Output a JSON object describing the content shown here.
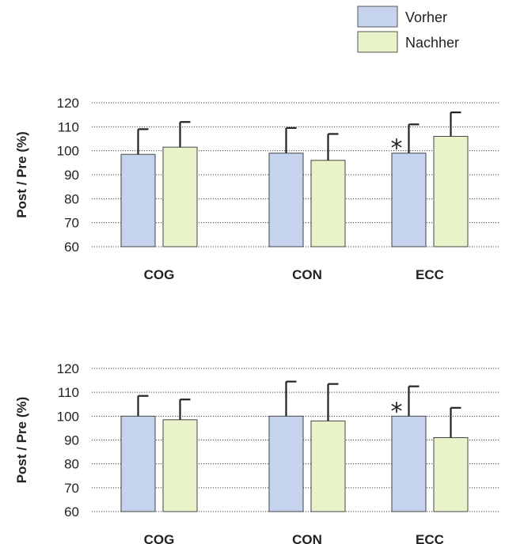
{
  "legend": [
    {
      "label": "Vorher",
      "color": "#c5d3ee"
    },
    {
      "label": "Nachher",
      "color": "#e9f3c9"
    }
  ],
  "chart_data": [
    {
      "type": "bar",
      "ylabel": "Post / Pre (%)",
      "ylim": [
        60,
        120
      ],
      "yticks": [
        "120",
        "110",
        "100",
        "90",
        "80",
        "70",
        "60"
      ],
      "categories": [
        "COG",
        "CON",
        "ECC"
      ],
      "series": [
        {
          "name": "Vorher",
          "values": [
            98.5,
            99,
            99
          ],
          "errors": [
            10.5,
            10.5,
            12
          ]
        },
        {
          "name": "Nachher",
          "values": [
            101.5,
            96,
            106
          ],
          "errors": [
            10.5,
            11,
            10
          ]
        }
      ],
      "annotations": [
        {
          "category": "ECC",
          "text": "*"
        }
      ],
      "grid": true
    },
    {
      "type": "bar",
      "ylabel": "Post / Pre (%)",
      "ylim": [
        60,
        120
      ],
      "yticks": [
        "120",
        "110",
        "100",
        "90",
        "80",
        "70",
        "60"
      ],
      "categories": [
        "COG",
        "CON",
        "ECC"
      ],
      "series": [
        {
          "name": "Vorher",
          "values": [
            100,
            100,
            100
          ],
          "errors": [
            8.5,
            14.5,
            12.5
          ]
        },
        {
          "name": "Nachher",
          "values": [
            98.5,
            98,
            91
          ],
          "errors": [
            8.5,
            15.5,
            12.5
          ]
        }
      ],
      "annotations": [
        {
          "category": "ECC",
          "text": "*"
        }
      ],
      "grid": true
    }
  ]
}
